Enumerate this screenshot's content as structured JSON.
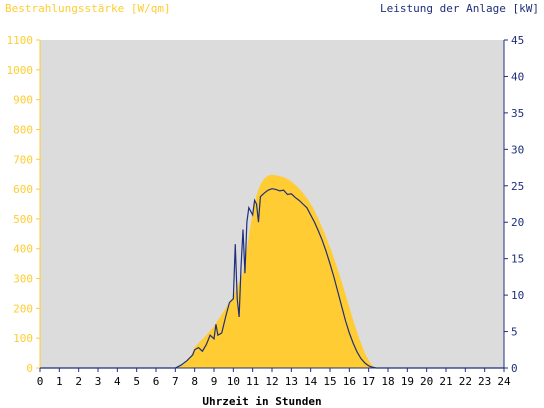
{
  "chart_data": {
    "type": "area",
    "left_axis": {
      "title": "Bestrahlungsstärke [W/qm]",
      "min": 0,
      "max": 1100,
      "ticks": [
        "0",
        "100",
        "200",
        "300",
        "400",
        "500",
        "600",
        "700",
        "800",
        "900",
        "1000",
        "1100"
      ]
    },
    "right_axis": {
      "title": "Leistung der Anlage [kW]",
      "min": 0,
      "max": 45,
      "ticks": [
        "0",
        "5",
        "10",
        "15",
        "20",
        "25",
        "30",
        "35",
        "40",
        "45"
      ]
    },
    "x_axis": {
      "title": "Uhrzeit in Stunden",
      "min": 0,
      "max": 24,
      "ticks": [
        "0",
        "1",
        "2",
        "3",
        "4",
        "5",
        "6",
        "7",
        "8",
        "9",
        "10",
        "11",
        "12",
        "13",
        "14",
        "15",
        "16",
        "17",
        "18",
        "19",
        "20",
        "21",
        "22",
        "23",
        "24"
      ]
    },
    "grid": false,
    "series": [
      {
        "axis": "left",
        "kind": "area",
        "color": "#ffcc33",
        "points": [
          [
            0,
            0
          ],
          [
            6.9,
            0
          ],
          [
            7.2,
            5
          ],
          [
            7.5,
            15
          ],
          [
            7.8,
            40
          ],
          [
            8.0,
            70
          ],
          [
            8.3,
            90
          ],
          [
            8.6,
            110
          ],
          [
            9.0,
            140
          ],
          [
            9.3,
            170
          ],
          [
            9.6,
            200
          ],
          [
            10.0,
            240
          ],
          [
            10.2,
            270
          ],
          [
            10.5,
            320
          ],
          [
            10.8,
            440
          ],
          [
            11.0,
            520
          ],
          [
            11.2,
            580
          ],
          [
            11.4,
            615
          ],
          [
            11.6,
            635
          ],
          [
            11.8,
            645
          ],
          [
            12.0,
            648
          ],
          [
            12.3,
            645
          ],
          [
            12.6,
            640
          ],
          [
            12.9,
            630
          ],
          [
            13.2,
            615
          ],
          [
            13.5,
            595
          ],
          [
            13.8,
            570
          ],
          [
            14.1,
            540
          ],
          [
            14.4,
            500
          ],
          [
            14.7,
            455
          ],
          [
            15.0,
            405
          ],
          [
            15.3,
            350
          ],
          [
            15.6,
            290
          ],
          [
            15.9,
            225
          ],
          [
            16.2,
            160
          ],
          [
            16.5,
            100
          ],
          [
            16.8,
            50
          ],
          [
            17.1,
            15
          ],
          [
            17.3,
            3
          ],
          [
            17.5,
            0
          ],
          [
            24,
            0
          ]
        ]
      },
      {
        "axis": "right",
        "kind": "line",
        "color": "#1f2f7a",
        "points": [
          [
            0,
            0
          ],
          [
            7.0,
            0
          ],
          [
            7.3,
            0.4
          ],
          [
            7.6,
            1.0
          ],
          [
            7.9,
            1.8
          ],
          [
            8.0,
            2.5
          ],
          [
            8.2,
            2.8
          ],
          [
            8.4,
            2.3
          ],
          [
            8.6,
            3.2
          ],
          [
            8.8,
            4.5
          ],
          [
            9.0,
            4.0
          ],
          [
            9.1,
            6.0
          ],
          [
            9.2,
            4.5
          ],
          [
            9.4,
            4.8
          ],
          [
            9.6,
            7.0
          ],
          [
            9.8,
            9.0
          ],
          [
            10.0,
            9.5
          ],
          [
            10.1,
            17.0
          ],
          [
            10.2,
            9.5
          ],
          [
            10.3,
            7.0
          ],
          [
            10.4,
            14.0
          ],
          [
            10.5,
            19.0
          ],
          [
            10.6,
            13.0
          ],
          [
            10.7,
            20.0
          ],
          [
            10.8,
            22.0
          ],
          [
            11.0,
            21.0
          ],
          [
            11.1,
            23.0
          ],
          [
            11.2,
            22.5
          ],
          [
            11.3,
            20.0
          ],
          [
            11.4,
            23.5
          ],
          [
            11.6,
            24.0
          ],
          [
            11.8,
            24.4
          ],
          [
            12.0,
            24.6
          ],
          [
            12.2,
            24.5
          ],
          [
            12.4,
            24.3
          ],
          [
            12.6,
            24.4
          ],
          [
            12.8,
            23.8
          ],
          [
            13.0,
            23.9
          ],
          [
            13.2,
            23.4
          ],
          [
            13.4,
            23.0
          ],
          [
            13.6,
            22.5
          ],
          [
            13.8,
            22.0
          ],
          [
            14.0,
            21.0
          ],
          [
            14.2,
            20.0
          ],
          [
            14.4,
            18.8
          ],
          [
            14.6,
            17.5
          ],
          [
            14.8,
            16.0
          ],
          [
            15.0,
            14.3
          ],
          [
            15.2,
            12.5
          ],
          [
            15.4,
            10.5
          ],
          [
            15.6,
            8.5
          ],
          [
            15.8,
            6.5
          ],
          [
            16.0,
            4.8
          ],
          [
            16.2,
            3.4
          ],
          [
            16.4,
            2.2
          ],
          [
            16.6,
            1.3
          ],
          [
            16.8,
            0.7
          ],
          [
            17.0,
            0.3
          ],
          [
            17.2,
            0.1
          ],
          [
            17.4,
            0
          ],
          [
            24,
            0
          ]
        ]
      }
    ],
    "colors": {
      "plot_background": "#dcdcdc",
      "left_axis_color": "#ffcc33",
      "right_axis_color": "#1f2f7a",
      "x_axis_color": "#000000"
    }
  }
}
